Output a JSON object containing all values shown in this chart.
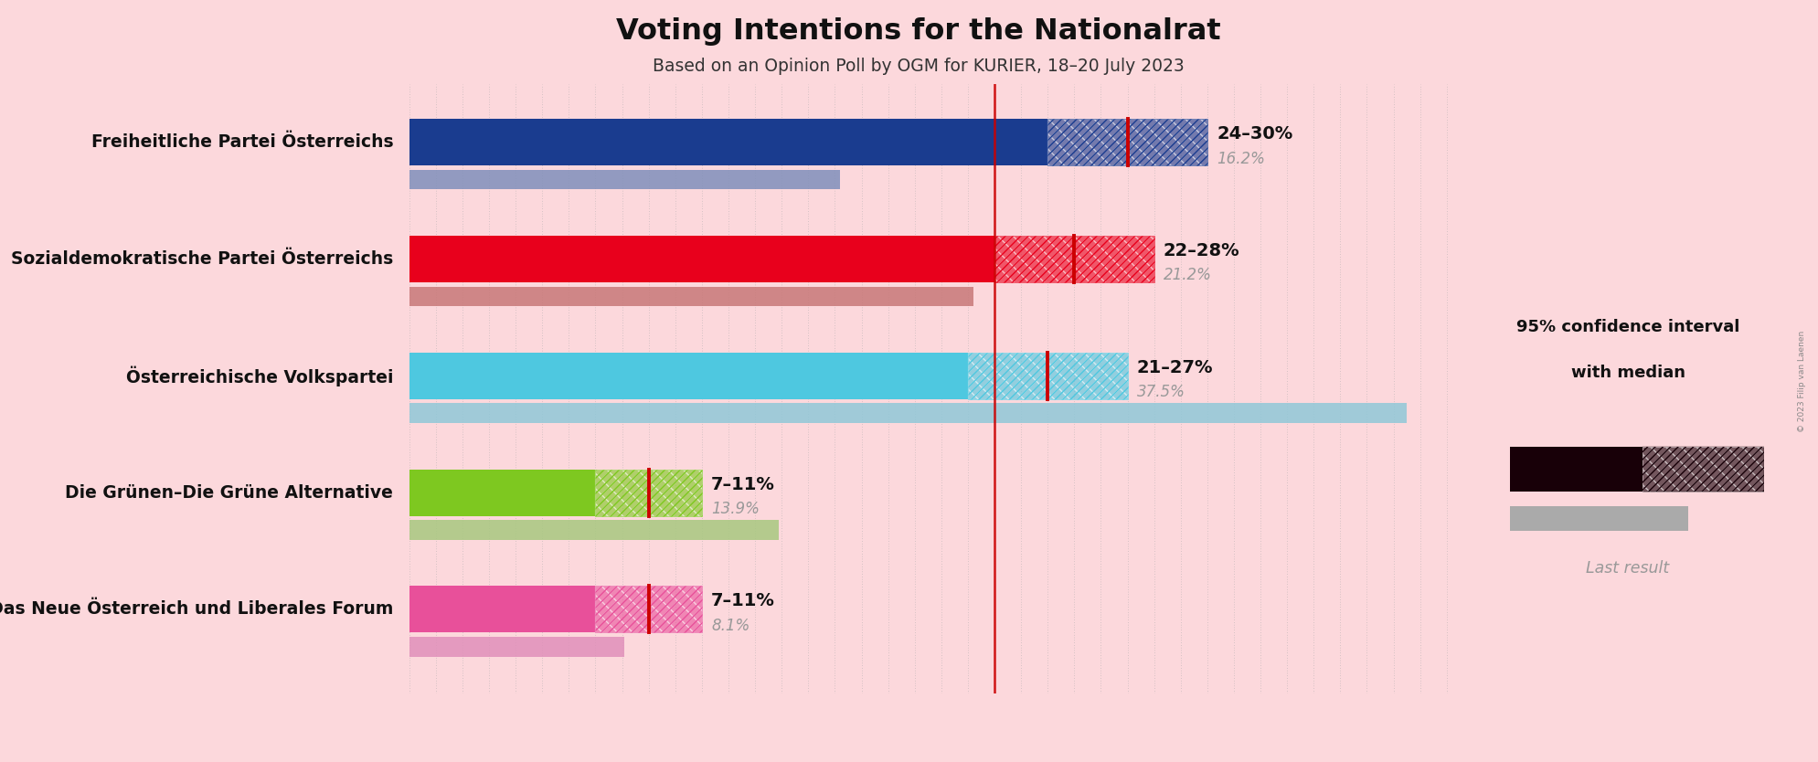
{
  "title": "Voting Intentions for the Nationalrat",
  "subtitle": "Based on an Opinion Poll by OGM for KURIER, 18–20 July 2023",
  "background_color": "#fcd8dc",
  "parties": [
    {
      "name": "Freiheitliche Partei Österreichs",
      "color": "#1a3c8f",
      "last_color": "#8090bb",
      "ci_low": 24,
      "ci_high": 30,
      "median": 27,
      "last_result": 16.2,
      "label": "24–30%",
      "last_label": "16.2%"
    },
    {
      "name": "Sozialdemokratische Partei Österreichs",
      "color": "#e8001c",
      "last_color": "#c87878",
      "ci_low": 22,
      "ci_high": 28,
      "median": 25,
      "last_result": 21.2,
      "label": "22–28%",
      "last_label": "21.2%"
    },
    {
      "name": "Österreichische Volkspartei",
      "color": "#4ec8e0",
      "last_color": "#90c8d8",
      "ci_low": 21,
      "ci_high": 27,
      "median": 24,
      "last_result": 37.5,
      "label": "21–27%",
      "last_label": "37.5%"
    },
    {
      "name": "Die Grünen–Die Grüne Alternative",
      "color": "#7ec820",
      "last_color": "#a8c880",
      "ci_low": 7,
      "ci_high": 11,
      "median": 9,
      "last_result": 13.9,
      "label": "7–11%",
      "last_label": "13.9%"
    },
    {
      "name": "NEOS–Das Neue Österreich und Liberales Forum",
      "color": "#e8509a",
      "last_color": "#e090ba",
      "ci_low": 7,
      "ci_high": 11,
      "median": 9,
      "last_result": 8.1,
      "label": "7–11%",
      "last_label": "8.1%"
    }
  ],
  "x_max": 40,
  "global_red_line": 22,
  "median_line_color": "#cc0000",
  "label_color": "#111111",
  "last_label_color": "#999999",
  "copyright_text": "© 2023 Filip van Laenen",
  "legend_ci_text1": "95% confidence interval",
  "legend_ci_text2": "with median",
  "legend_last_text": "Last result"
}
